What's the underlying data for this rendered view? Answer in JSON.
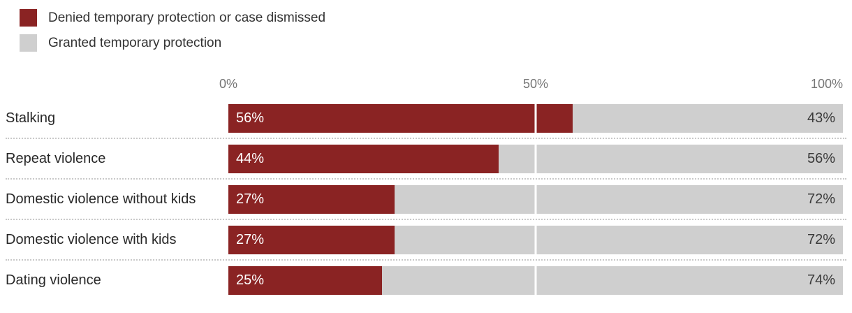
{
  "legend": {
    "items": [
      {
        "label": "Denied temporary protection or case dismissed",
        "color": "#8a2323"
      },
      {
        "label": "Granted temporary protection",
        "color": "#cfcfcf"
      }
    ]
  },
  "axis": {
    "tick_0": "0%",
    "tick_50": "50%",
    "tick_100": "100%"
  },
  "rows": [
    {
      "category": "Stalking",
      "denied_label": "56%",
      "granted_label": "43%"
    },
    {
      "category": "Repeat violence",
      "denied_label": "44%",
      "granted_label": "56%"
    },
    {
      "category": "Domestic violence without kids",
      "denied_label": "27%",
      "granted_label": "72%"
    },
    {
      "category": "Domestic violence with kids",
      "denied_label": "27%",
      "granted_label": "72%"
    },
    {
      "category": "Dating violence",
      "denied_label": "25%",
      "granted_label": "74%"
    }
  ],
  "chart_data": {
    "type": "bar",
    "orientation": "horizontal",
    "stacked": true,
    "title": "",
    "categories": [
      "Stalking",
      "Repeat violence",
      "Domestic violence without kids",
      "Domestic violence with kids",
      "Dating violence"
    ],
    "series": [
      {
        "name": "Denied temporary protection or case dismissed",
        "color": "#8a2323",
        "values": [
          56,
          44,
          27,
          27,
          25
        ]
      },
      {
        "name": "Granted temporary protection",
        "color": "#cfcfcf",
        "values": [
          43,
          56,
          72,
          72,
          74
        ]
      }
    ],
    "x_ticks": [
      "0%",
      "50%",
      "100%"
    ],
    "xlim": [
      0,
      100
    ],
    "gridline_at_percent": 50,
    "legend_position": "top-left",
    "value_labels": "inside",
    "separator_style": "dotted"
  },
  "colors": {
    "denied": "#8a2323",
    "granted": "#cfcfcf",
    "axis_text": "#757575",
    "category_text": "#282828",
    "granted_value_text": "#3b3b3b",
    "separator": "#c9c9c9",
    "background": "#ffffff"
  }
}
